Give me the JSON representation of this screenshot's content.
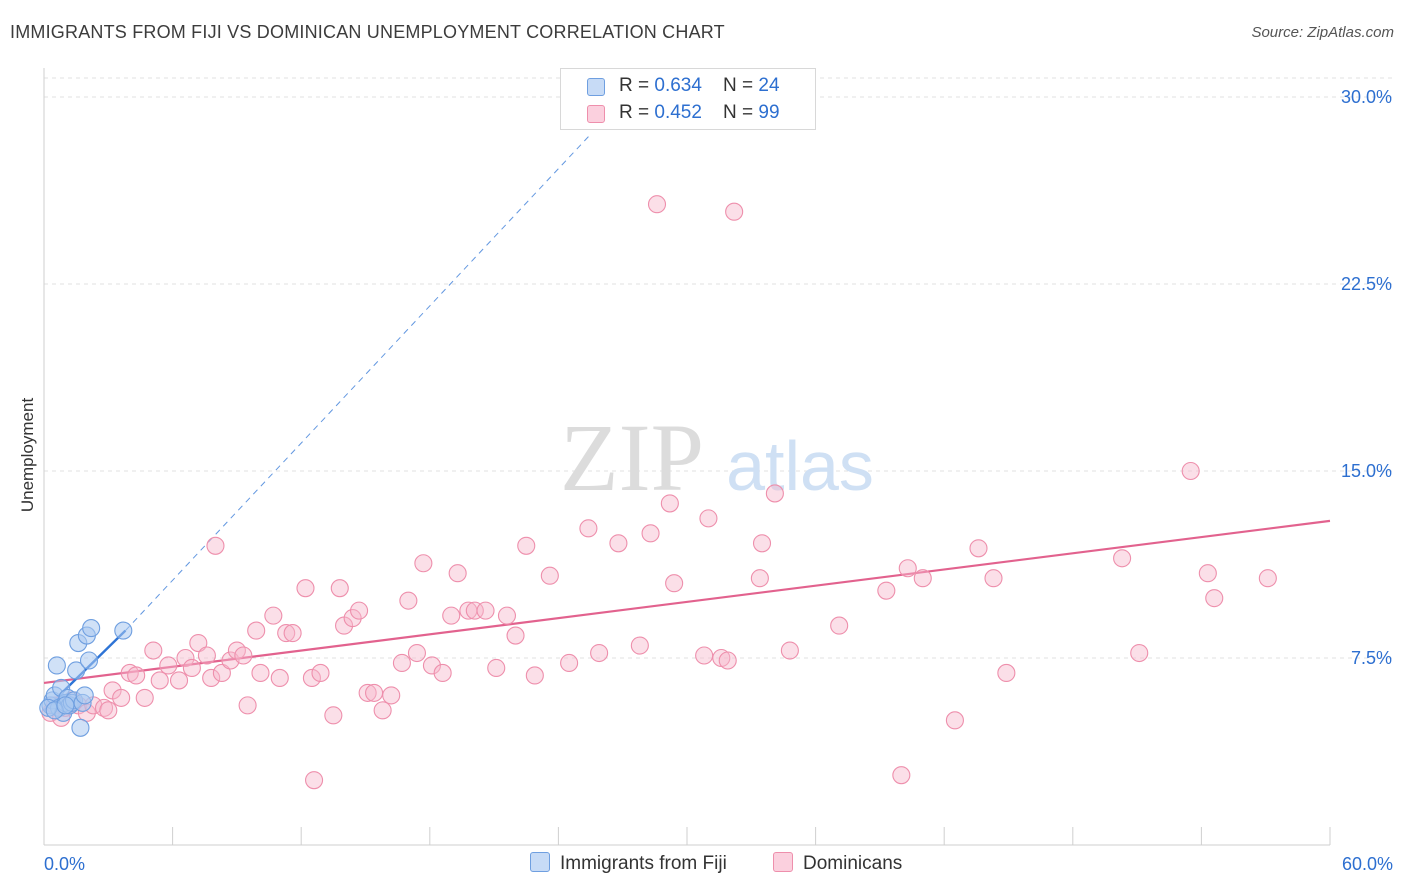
{
  "header": {
    "title": "IMMIGRANTS FROM FIJI VS DOMINICAN UNEMPLOYMENT CORRELATION CHART",
    "source": "Source: ZipAtlas.com"
  },
  "legend": {
    "series1": {
      "r_label": "R = ",
      "r_value": "0.634",
      "n_label": "N = ",
      "n_value": "24"
    },
    "series2": {
      "r_label": "R = ",
      "r_value": "0.452",
      "n_label": "N = ",
      "n_value": "99"
    }
  },
  "watermark": {
    "zip": "ZIP",
    "atlas": "atlas"
  },
  "colors": {
    "blue_fill": "#a9c8f0",
    "blue_stroke": "#6f9fe0",
    "blue_line": "#2e74d6",
    "pink_fill": "#f6b9cc",
    "pink_stroke": "#ee8fac",
    "pink_line": "#e2628e",
    "axis_label": "#2d6fd0",
    "grid": "#e2e2e2"
  },
  "chart_data": {
    "type": "scatter",
    "title": "IMMIGRANTS FROM FIJI VS DOMINICAN UNEMPLOYMENT CORRELATION CHART",
    "xlabel": "",
    "ylabel": "Unemployment",
    "xlim": [
      0,
      60
    ],
    "ylim": [
      0,
      30.5
    ],
    "x_tick_labels": [
      "0.0%",
      "60.0%"
    ],
    "y_ticks": [
      7.5,
      15.0,
      22.5,
      30.0
    ],
    "y_tick_labels": [
      "7.5%",
      "15.0%",
      "22.5%",
      "30.0%"
    ],
    "grid": true,
    "legend_position": "top-center",
    "series": [
      {
        "name": "Immigrants from Fiji",
        "color": "#a9c8f0",
        "points": [
          [
            0.3,
            5.6
          ],
          [
            0.4,
            5.8
          ],
          [
            0.5,
            6.0
          ],
          [
            0.6,
            7.2
          ],
          [
            0.7,
            5.5
          ],
          [
            0.8,
            6.3
          ],
          [
            0.9,
            5.3
          ],
          [
            1.0,
            5.7
          ],
          [
            1.1,
            5.9
          ],
          [
            1.2,
            5.6
          ],
          [
            1.3,
            5.7
          ],
          [
            1.4,
            5.8
          ],
          [
            1.5,
            7.0
          ],
          [
            1.6,
            8.1
          ],
          [
            1.7,
            4.7
          ],
          [
            1.8,
            5.7
          ],
          [
            1.9,
            6.0
          ],
          [
            2.0,
            8.4
          ],
          [
            2.1,
            7.4
          ],
          [
            2.2,
            8.7
          ],
          [
            0.2,
            5.5
          ],
          [
            3.7,
            8.6
          ],
          [
            0.5,
            5.4
          ],
          [
            1.0,
            5.6
          ]
        ],
        "trend": {
          "x0": 0,
          "y0": 5.4,
          "x1": 3.8,
          "y1": 8.6,
          "dashed_to_x": 25.5,
          "dashed_to_y": 28.5
        }
      },
      {
        "name": "Dominicans",
        "color": "#f6b9cc",
        "points": [
          [
            0.3,
            5.3
          ],
          [
            0.5,
            5.6
          ],
          [
            0.8,
            5.1
          ],
          [
            1.0,
            5.5
          ],
          [
            1.3,
            5.8
          ],
          [
            1.6,
            5.6
          ],
          [
            2.0,
            5.3
          ],
          [
            2.3,
            5.6
          ],
          [
            2.8,
            5.5
          ],
          [
            3.2,
            6.2
          ],
          [
            3.6,
            5.9
          ],
          [
            4.0,
            6.9
          ],
          [
            4.3,
            6.8
          ],
          [
            4.7,
            5.9
          ],
          [
            5.1,
            7.8
          ],
          [
            5.4,
            6.6
          ],
          [
            5.8,
            7.2
          ],
          [
            6.3,
            6.6
          ],
          [
            6.6,
            7.5
          ],
          [
            6.9,
            7.1
          ],
          [
            7.2,
            8.1
          ],
          [
            7.6,
            7.6
          ],
          [
            7.8,
            6.7
          ],
          [
            8.0,
            12.0
          ],
          [
            8.3,
            6.9
          ],
          [
            8.7,
            7.4
          ],
          [
            9.0,
            7.8
          ],
          [
            9.3,
            7.6
          ],
          [
            9.5,
            5.6
          ],
          [
            9.9,
            8.6
          ],
          [
            10.1,
            6.9
          ],
          [
            10.7,
            9.2
          ],
          [
            11.0,
            6.7
          ],
          [
            11.3,
            8.5
          ],
          [
            11.6,
            8.5
          ],
          [
            12.2,
            10.3
          ],
          [
            12.5,
            6.7
          ],
          [
            12.9,
            6.9
          ],
          [
            13.5,
            5.2
          ],
          [
            13.8,
            10.3
          ],
          [
            14.0,
            8.8
          ],
          [
            14.4,
            9.1
          ],
          [
            14.7,
            9.4
          ],
          [
            15.1,
            6.1
          ],
          [
            15.4,
            6.1
          ],
          [
            15.8,
            5.4
          ],
          [
            16.2,
            6.0
          ],
          [
            16.7,
            7.3
          ],
          [
            17.0,
            9.8
          ],
          [
            17.4,
            7.7
          ],
          [
            17.7,
            11.3
          ],
          [
            18.1,
            7.2
          ],
          [
            18.6,
            6.9
          ],
          [
            19.0,
            9.2
          ],
          [
            19.3,
            10.9
          ],
          [
            19.8,
            9.4
          ],
          [
            20.1,
            9.4
          ],
          [
            20.6,
            9.4
          ],
          [
            21.1,
            7.1
          ],
          [
            21.6,
            9.2
          ],
          [
            22.0,
            8.4
          ],
          [
            22.5,
            12.0
          ],
          [
            22.9,
            6.8
          ],
          [
            23.6,
            10.8
          ],
          [
            24.5,
            7.3
          ],
          [
            25.4,
            12.7
          ],
          [
            25.9,
            7.7
          ],
          [
            26.8,
            12.1
          ],
          [
            27.8,
            8.0
          ],
          [
            28.3,
            12.5
          ],
          [
            28.6,
            25.7
          ],
          [
            29.2,
            13.7
          ],
          [
            29.4,
            10.5
          ],
          [
            30.8,
            7.6
          ],
          [
            31.0,
            13.1
          ],
          [
            31.6,
            7.5
          ],
          [
            31.9,
            7.4
          ],
          [
            32.2,
            25.4
          ],
          [
            33.4,
            10.7
          ],
          [
            33.5,
            12.1
          ],
          [
            34.1,
            14.1
          ],
          [
            34.8,
            7.8
          ],
          [
            37.1,
            8.8
          ],
          [
            39.3,
            10.2
          ],
          [
            40.0,
            2.8
          ],
          [
            40.3,
            11.1
          ],
          [
            41.0,
            10.7
          ],
          [
            42.5,
            5.0
          ],
          [
            43.6,
            11.9
          ],
          [
            44.3,
            10.7
          ],
          [
            44.9,
            6.9
          ],
          [
            50.3,
            11.5
          ],
          [
            51.1,
            7.7
          ],
          [
            53.5,
            15.0
          ],
          [
            54.3,
            10.9
          ],
          [
            54.6,
            9.9
          ],
          [
            57.1,
            10.7
          ],
          [
            12.6,
            2.6
          ],
          [
            3.0,
            5.4
          ]
        ],
        "trend": {
          "x0": 0,
          "y0": 6.5,
          "x1": 60,
          "y1": 13.0
        }
      }
    ]
  },
  "bottom_legend": {
    "item1": "Immigrants from Fiji",
    "item2": "Dominicans"
  }
}
